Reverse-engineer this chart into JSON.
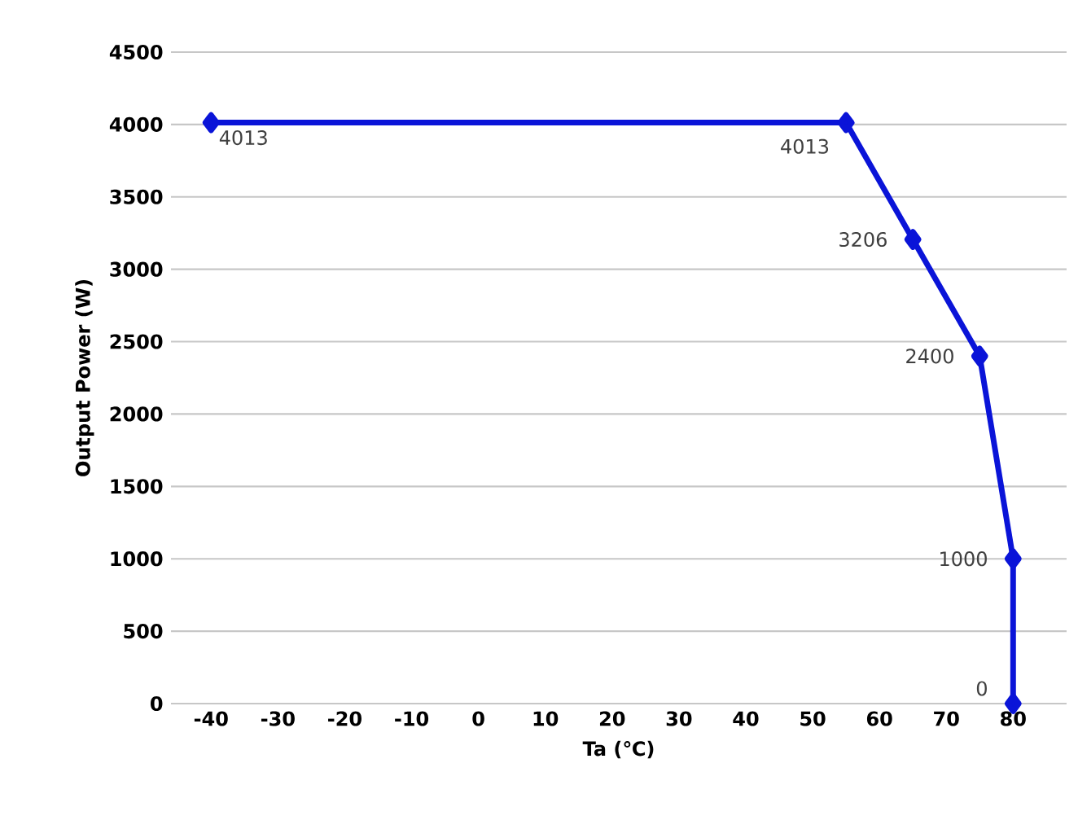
{
  "chart_data": {
    "type": "line",
    "xlabel": "Ta (℃)",
    "ylabel": "Output Power (W)",
    "x": [
      -40,
      55,
      65,
      75,
      80,
      80
    ],
    "series": [
      {
        "color": "#0a14d8",
        "values": [
          4013,
          4013,
          3206,
          2400,
          1000,
          0
        ]
      }
    ],
    "xlim": [
      -46,
      88
    ],
    "ylim": [
      0,
      4500
    ],
    "xticks": [
      -40,
      -30,
      -20,
      -10,
      0,
      10,
      20,
      30,
      40,
      50,
      60,
      70,
      80
    ],
    "yticks": [
      0,
      500,
      1000,
      1500,
      2000,
      2500,
      3000,
      3500,
      4000,
      4500
    ],
    "grid": "y",
    "marker": "diamond",
    "line_style": "solid",
    "data_labels": true
  }
}
